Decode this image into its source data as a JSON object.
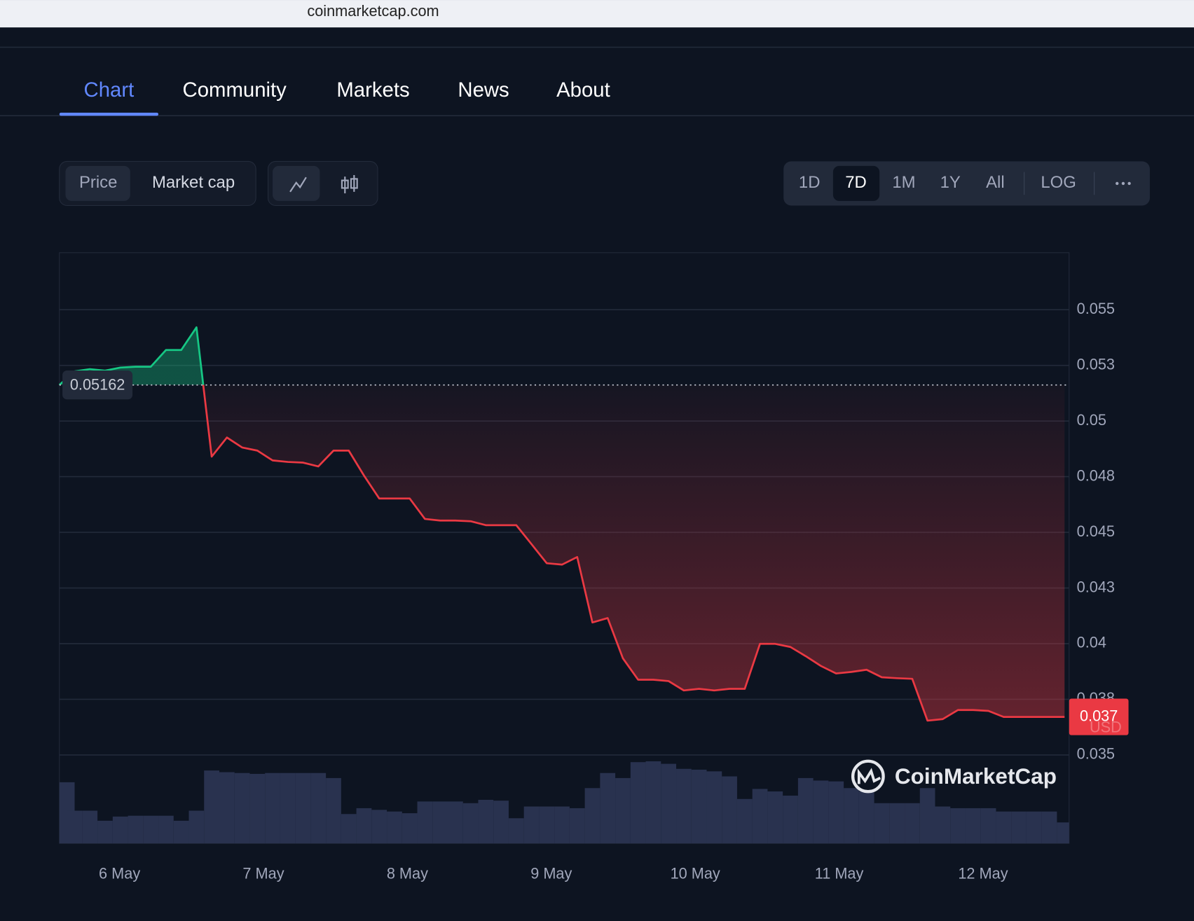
{
  "browser": {
    "url": "coinmarketcap.com"
  },
  "tabs": [
    {
      "label": "Chart",
      "active": true
    },
    {
      "label": "Community",
      "active": false
    },
    {
      "label": "Markets",
      "active": false
    },
    {
      "label": "News",
      "active": false
    },
    {
      "label": "About",
      "active": false
    }
  ],
  "metric_toggle": [
    {
      "label": "Price",
      "active": true
    },
    {
      "label": "Market cap",
      "active": false
    }
  ],
  "timeframes": [
    {
      "label": "1D",
      "active": false
    },
    {
      "label": "7D",
      "active": true
    },
    {
      "label": "1M",
      "active": false
    },
    {
      "label": "1Y",
      "active": false
    },
    {
      "label": "All",
      "active": false
    }
  ],
  "scale_option": "LOG",
  "chart_data": {
    "type": "line",
    "grid": true,
    "ylim": [
      0.03103,
      0.05756
    ],
    "yticks": [
      0.035,
      {
        "value": 0.0375,
        "label": "0.038"
      },
      0.04,
      {
        "value": 0.0425,
        "label": "0.043"
      },
      0.045,
      {
        "value": 0.0475,
        "label": "0.048"
      },
      0.05,
      {
        "value": 0.0525,
        "label": "0.053"
      },
      0.055
    ],
    "y2lim": [
      0,
      100
    ],
    "x_labels": [
      "6 May",
      "7 May",
      "8 May",
      "9 May",
      "10 May",
      "11 May",
      "12 May"
    ],
    "reference_price": 0.05162,
    "last_price": {
      "value": 0.03671,
      "label": "0.037"
    },
    "currency": "USD",
    "watermark": "CoinMarketCap",
    "series": [
      {
        "up_color": "#16c784",
        "down_color": "#ea3943",
        "values": [
          0.05162,
          0.05223,
          0.05233,
          0.05226,
          0.0524,
          0.05244,
          0.05244,
          0.05319,
          0.05319,
          0.05421,
          0.0484,
          0.04926,
          0.04881,
          0.04867,
          0.04823,
          0.04816,
          0.04813,
          0.04796,
          0.04867,
          0.04867,
          0.04755,
          0.04652,
          0.04652,
          0.04652,
          0.0456,
          0.04553,
          0.04553,
          0.0455,
          0.04532,
          0.04532,
          0.04532,
          0.04447,
          0.04361,
          0.04355,
          0.04389,
          0.04095,
          0.04115,
          0.03934,
          0.03838,
          0.03838,
          0.03832,
          0.0379,
          0.03797,
          0.0379,
          0.03797,
          0.03797,
          0.03999,
          0.03999,
          0.03985,
          0.03944,
          0.039,
          0.03866,
          0.03873,
          0.03883,
          0.03849,
          0.03845,
          0.03842,
          0.03654,
          0.03661,
          0.03702,
          0.03702,
          0.03698,
          0.03671,
          0.03671,
          0.03671,
          0.03671,
          0.03671
        ]
      },
      {
        "axis": "y2",
        "color": "#29324f",
        "values": [
          73,
          39,
          39,
          27,
          32,
          33,
          33,
          33,
          27,
          39,
          87,
          85,
          84,
          83,
          84,
          84,
          84,
          84,
          78,
          35,
          42,
          40,
          38,
          36,
          50,
          50,
          50,
          48,
          52,
          51,
          30,
          44,
          44,
          44,
          42,
          66,
          84,
          78,
          97,
          98,
          95,
          89,
          88,
          86,
          80,
          53,
          65,
          62,
          57,
          78,
          75,
          74,
          66,
          62,
          48,
          48,
          48,
          66,
          44,
          42,
          42,
          42,
          38,
          38,
          38,
          38,
          25
        ]
      }
    ]
  }
}
